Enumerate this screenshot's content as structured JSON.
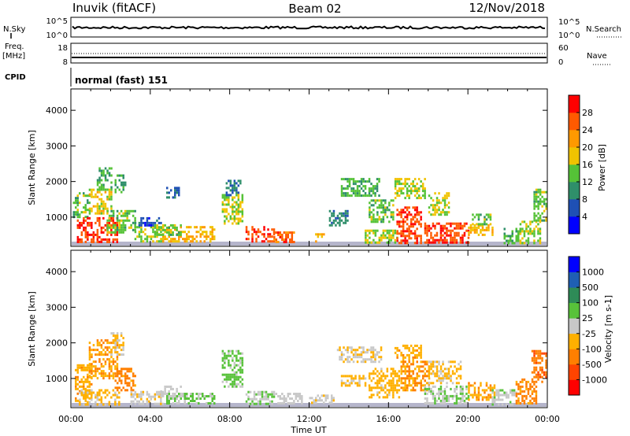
{
  "header": {
    "station": "Inuvik (fitACF)",
    "beam": "Beam 02",
    "date": "12/Nov/2018"
  },
  "sky_panel": {
    "left_label": "N.Sky",
    "left_ticks": [
      "10^5",
      "10^0"
    ],
    "right_ticks": [
      "10^5",
      "10^0"
    ],
    "right_label": "N.Search",
    "right_label_style": "dotted"
  },
  "freq_panel": {
    "left_label_1": "Freq.",
    "left_label_2": "[MHz]",
    "left_ticks": [
      "18",
      "8"
    ],
    "right_ticks": [
      "60",
      "0"
    ],
    "right_label": "Nave",
    "right_label_style": "dotted"
  },
  "cpid": {
    "label": "CPID",
    "value": "normal (fast) 151"
  },
  "x_axis": {
    "label": "Time UT",
    "ticks": [
      "00:00",
      "04:00",
      "08:00",
      "12:00",
      "16:00",
      "20:00",
      "00:00"
    ],
    "range_hours": [
      0,
      24
    ]
  },
  "chart_data": [
    {
      "type": "heatmap",
      "panel": "power",
      "ylabel": "Slant Range [km]",
      "yticks": [
        "1000",
        "2000",
        "3000",
        "4000"
      ],
      "ylim": [
        180,
        4600
      ],
      "colorbar": {
        "label": "Power [dB]",
        "ticks": [
          "28",
          "24",
          "20",
          "16",
          "12",
          "8",
          "4"
        ],
        "range": [
          0,
          32
        ],
        "colors": [
          "#0000ff",
          "#1f50b4",
          "#2f8f6a",
          "#55c237",
          "#f0c300",
          "#ff9900",
          "#ff5a00",
          "#ff0000"
        ]
      },
      "blobs": [
        {
          "t0": 0.1,
          "t1": 0.9,
          "r0": 1000,
          "r1": 1700,
          "v": 14
        },
        {
          "t0": 0.3,
          "t1": 2.3,
          "r0": 300,
          "r1": 1000,
          "v": 28
        },
        {
          "t0": 0.9,
          "t1": 2.0,
          "r0": 1100,
          "r1": 1800,
          "v": 18
        },
        {
          "t0": 1.3,
          "t1": 2.0,
          "r0": 1800,
          "r1": 2400,
          "v": 12
        },
        {
          "t0": 1.8,
          "t1": 3.2,
          "r0": 600,
          "r1": 1200,
          "v": 14
        },
        {
          "t0": 2.2,
          "t1": 2.7,
          "r0": 1700,
          "r1": 2200,
          "v": 12
        },
        {
          "t0": 3.2,
          "t1": 4.6,
          "r0": 300,
          "r1": 750,
          "v": 16
        },
        {
          "t0": 3.2,
          "t1": 4.5,
          "r0": 750,
          "r1": 1000,
          "v": 6
        },
        {
          "t0": 4.6,
          "t1": 7.2,
          "r0": 300,
          "r1": 750,
          "v": 20
        },
        {
          "t0": 4.2,
          "t1": 5.5,
          "r0": 500,
          "r1": 800,
          "v": 14
        },
        {
          "t0": 4.8,
          "t1": 5.4,
          "r0": 1550,
          "r1": 1850,
          "v": 8
        },
        {
          "t0": 7.6,
          "t1": 8.6,
          "r0": 850,
          "r1": 1650,
          "v": 16
        },
        {
          "t0": 7.8,
          "t1": 8.5,
          "r0": 1600,
          "r1": 2050,
          "v": 8
        },
        {
          "t0": 8.8,
          "t1": 10.2,
          "r0": 300,
          "r1": 750,
          "v": 27
        },
        {
          "t0": 10.2,
          "t1": 11.2,
          "r0": 300,
          "r1": 600,
          "v": 26
        },
        {
          "t0": 12.3,
          "t1": 12.7,
          "r0": 300,
          "r1": 550,
          "v": 22
        },
        {
          "t0": 13.0,
          "t1": 13.9,
          "r0": 800,
          "r1": 1200,
          "v": 9
        },
        {
          "t0": 13.6,
          "t1": 15.5,
          "r0": 1600,
          "r1": 2100,
          "v": 13
        },
        {
          "t0": 14.8,
          "t1": 16.4,
          "r0": 300,
          "r1": 650,
          "v": 16
        },
        {
          "t0": 15.0,
          "t1": 16.2,
          "r0": 900,
          "r1": 1500,
          "v": 14
        },
        {
          "t0": 16.3,
          "t1": 17.8,
          "r0": 1550,
          "r1": 2100,
          "v": 16
        },
        {
          "t0": 16.4,
          "t1": 17.6,
          "r0": 300,
          "r1": 1300,
          "v": 27
        },
        {
          "t0": 17.8,
          "t1": 20.0,
          "r0": 300,
          "r1": 850,
          "v": 27
        },
        {
          "t0": 18.0,
          "t1": 19.0,
          "r0": 1100,
          "r1": 1700,
          "v": 16
        },
        {
          "t0": 20.0,
          "t1": 21.2,
          "r0": 500,
          "r1": 800,
          "v": 19
        },
        {
          "t0": 20.2,
          "t1": 21.1,
          "r0": 800,
          "r1": 1100,
          "v": 14
        },
        {
          "t0": 21.8,
          "t1": 22.6,
          "r0": 300,
          "r1": 700,
          "v": 13
        },
        {
          "t0": 22.6,
          "t1": 23.6,
          "r0": 300,
          "r1": 900,
          "v": 16
        },
        {
          "t0": 23.3,
          "t1": 23.9,
          "r0": 900,
          "r1": 1800,
          "v": 14
        }
      ]
    },
    {
      "type": "heatmap",
      "panel": "velocity",
      "ylabel": "Slant Range [km]",
      "yticks": [
        "1000",
        "2000",
        "3000",
        "4000"
      ],
      "ylim": [
        180,
        4600
      ],
      "colorbar": {
        "label": "Velocity [m s-1]",
        "ticks": [
          "1000",
          "500",
          "100",
          "25",
          "-25",
          "-100",
          "-500",
          "-1000"
        ],
        "range": [
          -1200,
          1200
        ],
        "colors": [
          "#ff0000",
          "#ff4400",
          "#ff7f00",
          "#ffb000",
          "#c8c8c8",
          "#58c23a",
          "#2e8b57",
          "#1f5fb4",
          "#0000ff"
        ]
      },
      "blobs": [
        {
          "t0": 0.2,
          "t1": 1.0,
          "r0": 400,
          "r1": 1400,
          "v": -300
        },
        {
          "t0": 0.9,
          "t1": 2.3,
          "r0": 1000,
          "r1": 2100,
          "v": -400
        },
        {
          "t0": 0.4,
          "t1": 2.4,
          "r0": 300,
          "r1": 700,
          "v": -200
        },
        {
          "t0": 2.2,
          "t1": 3.2,
          "r0": 700,
          "r1": 1300,
          "v": -500
        },
        {
          "t0": 2.0,
          "t1": 2.6,
          "r0": 1700,
          "r1": 2300,
          "v": -150
        },
        {
          "t0": 3.0,
          "t1": 4.6,
          "r0": 300,
          "r1": 650,
          "v": -80
        },
        {
          "t0": 4.5,
          "t1": 5.5,
          "r0": 500,
          "r1": 800,
          "v": 0
        },
        {
          "t0": 4.8,
          "t1": 7.2,
          "r0": 300,
          "r1": 600,
          "v": 150
        },
        {
          "t0": 7.6,
          "t1": 8.6,
          "r0": 800,
          "r1": 1800,
          "v": 200
        },
        {
          "t0": 8.8,
          "t1": 10.2,
          "r0": 300,
          "r1": 650,
          "v": 120
        },
        {
          "t0": 10.2,
          "t1": 11.6,
          "r0": 300,
          "r1": 600,
          "v": 0
        },
        {
          "t0": 12.0,
          "t1": 13.2,
          "r0": 300,
          "r1": 550,
          "v": -60
        },
        {
          "t0": 13.4,
          "t1": 15.6,
          "r0": 1500,
          "r1": 1900,
          "v": -120
        },
        {
          "t0": 13.6,
          "t1": 15.0,
          "r0": 800,
          "r1": 1100,
          "v": -200
        },
        {
          "t0": 15.0,
          "t1": 16.5,
          "r0": 500,
          "r1": 1300,
          "v": -250
        },
        {
          "t0": 16.3,
          "t1": 17.6,
          "r0": 1500,
          "r1": 1950,
          "v": -300
        },
        {
          "t0": 16.6,
          "t1": 18.0,
          "r0": 700,
          "r1": 1500,
          "v": -400
        },
        {
          "t0": 17.8,
          "t1": 20.0,
          "r0": 300,
          "r1": 800,
          "v": 120
        },
        {
          "t0": 18.0,
          "t1": 19.6,
          "r0": 900,
          "r1": 1500,
          "v": -200
        },
        {
          "t0": 20.0,
          "t1": 21.3,
          "r0": 400,
          "r1": 900,
          "v": -350
        },
        {
          "t0": 21.2,
          "t1": 22.4,
          "r0": 300,
          "r1": 700,
          "v": 50
        },
        {
          "t0": 22.4,
          "t1": 23.4,
          "r0": 300,
          "r1": 1000,
          "v": -450
        },
        {
          "t0": 23.2,
          "t1": 23.9,
          "r0": 900,
          "r1": 1800,
          "v": -600
        }
      ]
    }
  ]
}
